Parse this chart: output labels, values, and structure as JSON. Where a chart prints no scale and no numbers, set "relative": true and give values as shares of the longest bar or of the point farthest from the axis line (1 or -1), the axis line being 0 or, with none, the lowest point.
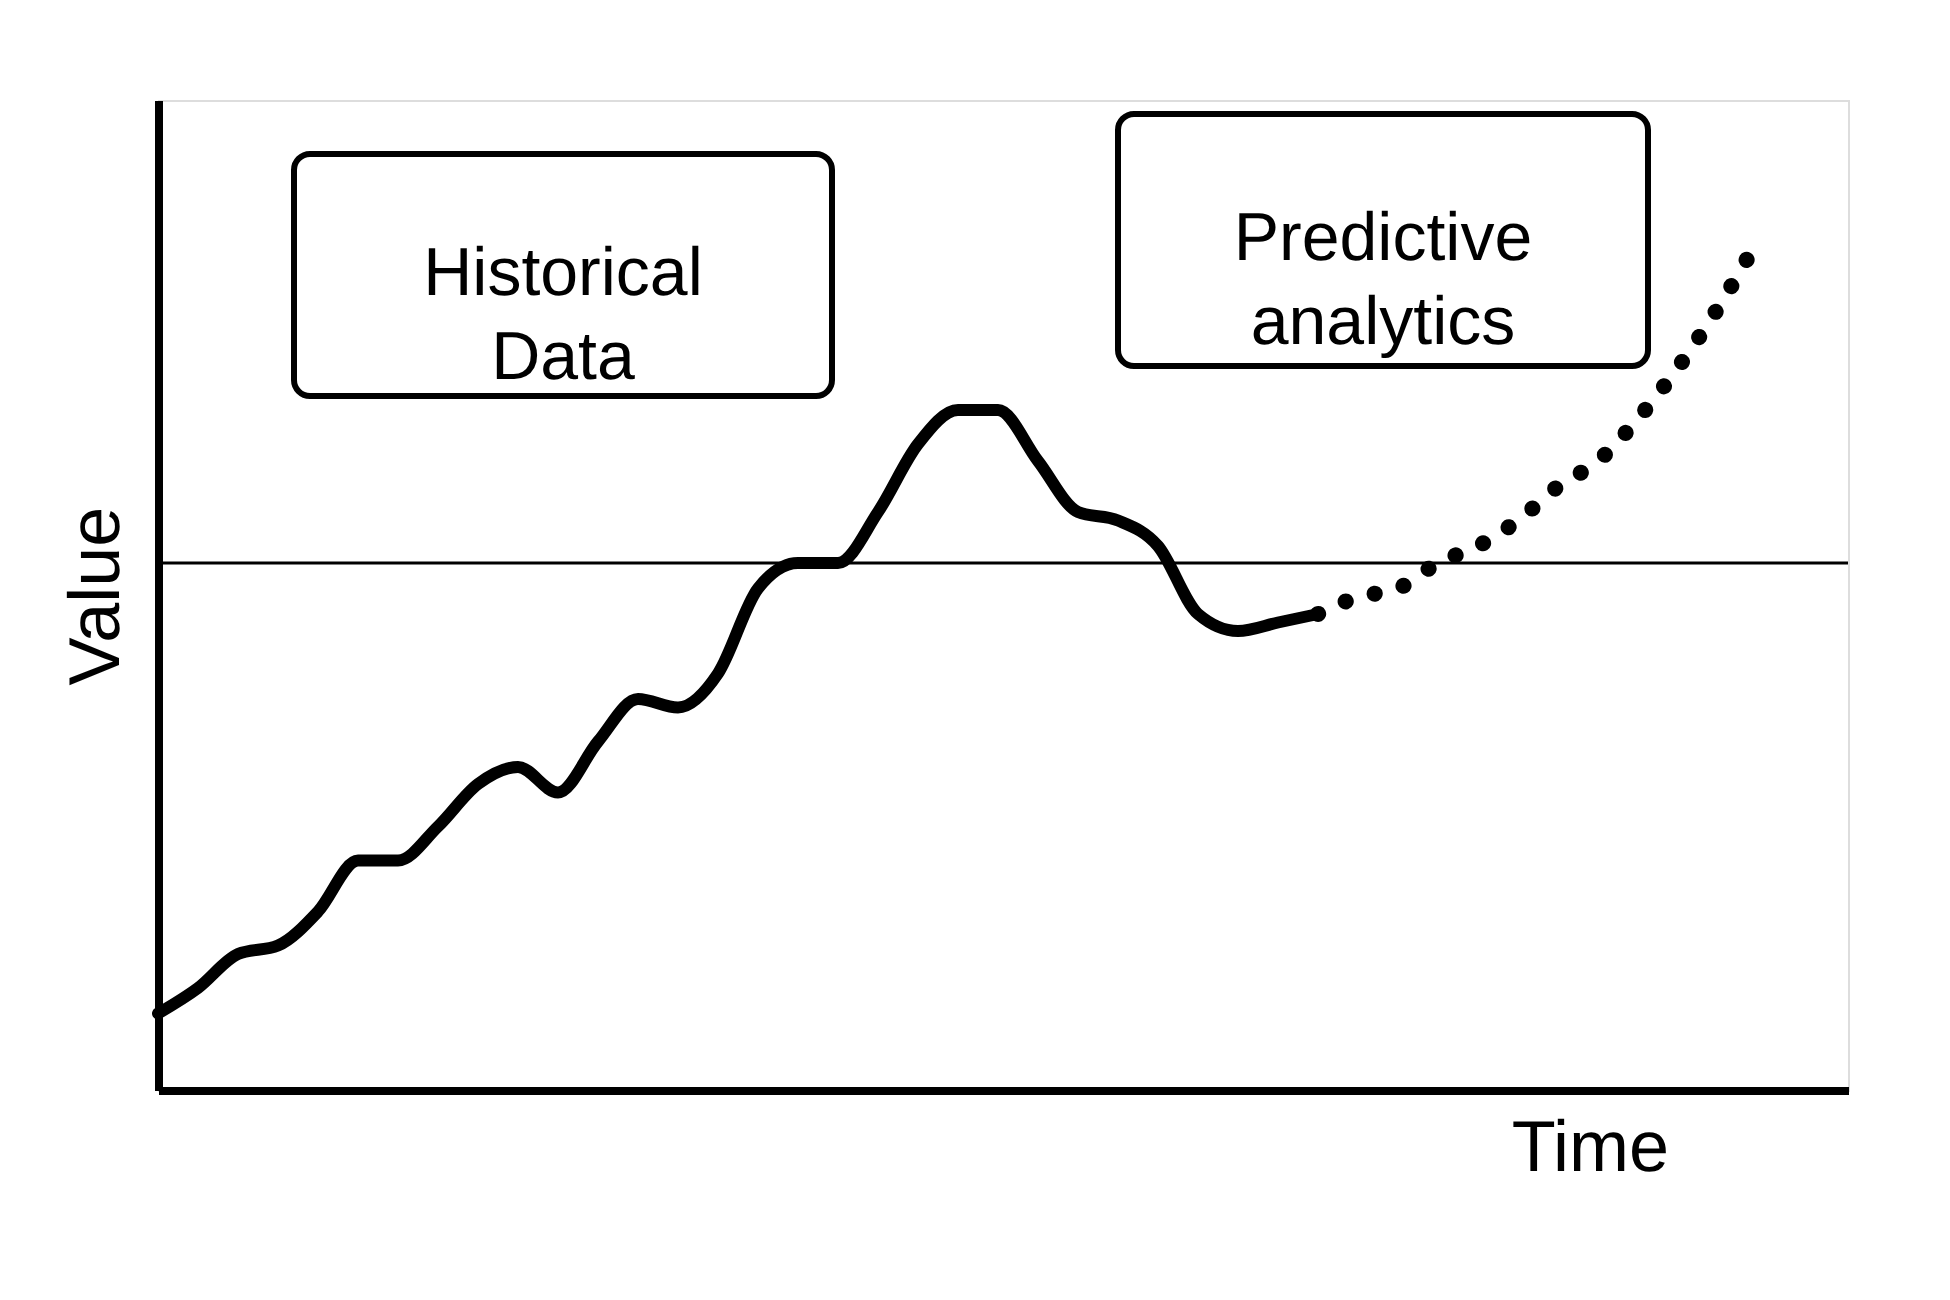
{
  "chart_data": {
    "type": "line",
    "relative": true,
    "xlabel": "Time",
    "ylabel": "Value",
    "categories": [
      null,
      null,
      null,
      null,
      null,
      null,
      null,
      null,
      null,
      null,
      null,
      null,
      null,
      null,
      null,
      null,
      null,
      null,
      null,
      null,
      null,
      null,
      null,
      null,
      null,
      null,
      null,
      null,
      null,
      null,
      null,
      null,
      null,
      null,
      null,
      null,
      null,
      null,
      null,
      null,
      null
    ],
    "series": [
      {
        "color": "#000000",
        "line_style": "solid",
        "values": [
          0.09,
          0.12,
          0.16,
          0.17,
          0.21,
          0.27,
          0.27,
          0.31,
          0.36,
          0.38,
          0.35,
          0.41,
          0.46,
          0.45,
          0.49,
          0.59,
          0.62,
          0.62,
          0.68,
          0.76,
          0.8,
          0.8,
          0.74,
          0.68,
          0.67,
          0.64,
          0.56,
          0.54,
          0.55,
          0.56,
          null,
          null,
          null,
          null,
          null,
          null,
          null,
          null,
          null,
          null,
          null
        ]
      },
      {
        "color": "#000000",
        "line_style": "dotted",
        "values": [
          null,
          null,
          null,
          null,
          null,
          null,
          null,
          null,
          null,
          null,
          null,
          null,
          null,
          null,
          null,
          null,
          null,
          null,
          null,
          null,
          null,
          null,
          null,
          null,
          null,
          null,
          null,
          null,
          null,
          0.56,
          0.58,
          0.59,
          0.62,
          0.64,
          0.67,
          0.71,
          0.74,
          0.79,
          0.85,
          0.92,
          1
        ]
      }
    ],
    "ref_lines": [
      {
        "axis": "y",
        "value": 0.62,
        "color": "#000000"
      }
    ],
    "annotations": [
      "Historical Data",
      "Predictive analytics"
    ]
  }
}
